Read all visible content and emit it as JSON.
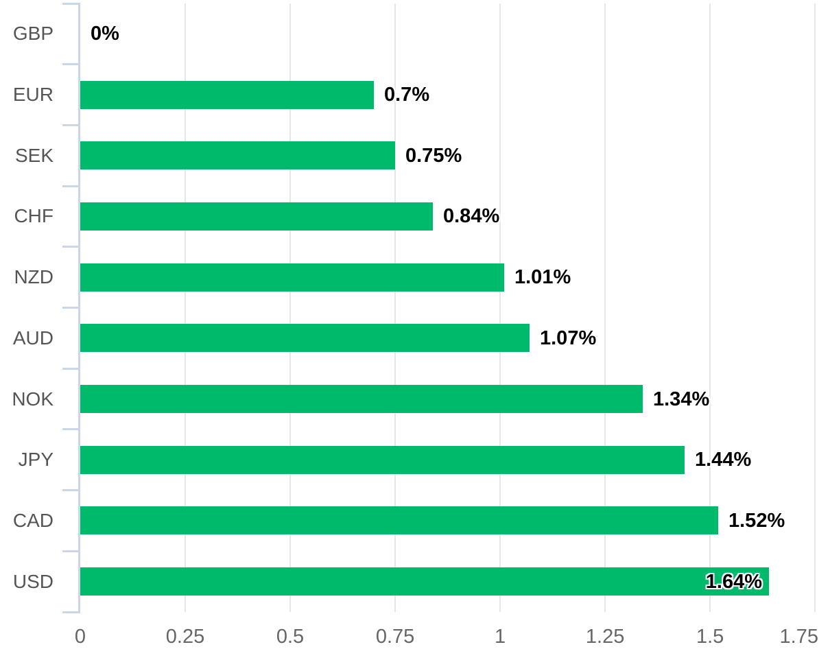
{
  "chart_data": {
    "type": "bar",
    "orientation": "horizontal",
    "title": "",
    "xlabel": "",
    "ylabel": "",
    "grid": true,
    "legend": false,
    "categories": [
      "GBP",
      "EUR",
      "SEK",
      "CHF",
      "NZD",
      "AUD",
      "NOK",
      "JPY",
      "CAD",
      "USD"
    ],
    "values": [
      0,
      0.7,
      0.75,
      0.84,
      1.01,
      1.07,
      1.34,
      1.44,
      1.52,
      1.64
    ],
    "data_labels": [
      "0%",
      "0.7%",
      "0.75%",
      "0.84%",
      "1.01%",
      "1.07%",
      "1.34%",
      "1.44%",
      "1.52%",
      "1.64%"
    ],
    "x_ticks": [
      "0",
      "0.25",
      "0.5",
      "0.75",
      "1",
      "1.25",
      "1.5",
      "1.75"
    ],
    "x_tick_values": [
      0,
      0.25,
      0.5,
      0.75,
      1,
      1.25,
      1.5,
      1.75
    ],
    "xlim": [
      0,
      1.753
    ],
    "colors": {
      "bar": "#00ba6b",
      "grid_line": "#e6e6e6",
      "axis_line": "#ccd6eb",
      "category_label": "#555555",
      "tick_label": "#666666",
      "data_label": "#000000",
      "data_label_outline": "#ffffff"
    }
  }
}
